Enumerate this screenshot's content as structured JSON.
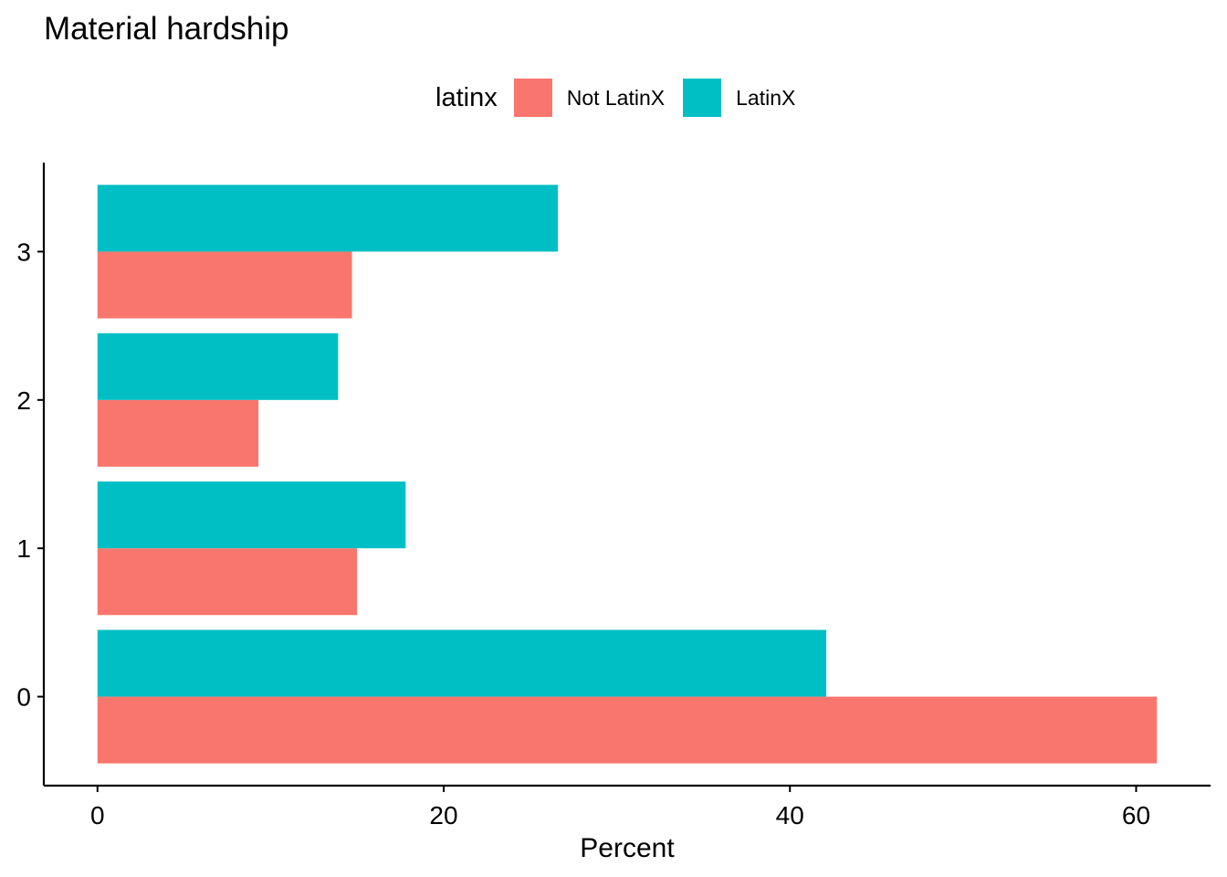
{
  "chart_data": {
    "type": "bar",
    "orientation": "horizontal",
    "title": "Material hardship",
    "xlabel": "Percent",
    "ylabel": "",
    "legend_title": "latinx",
    "legend_position": "top",
    "categories": [
      "0",
      "1",
      "2",
      "3"
    ],
    "series": [
      {
        "name": "Not LatinX",
        "color": "#F8766D",
        "values": [
          61.2,
          15.0,
          9.3,
          14.7
        ]
      },
      {
        "name": "LatinX",
        "color": "#00BFC4",
        "values": [
          42.1,
          17.8,
          13.9,
          26.6
        ]
      }
    ],
    "xlim": [
      -3.1,
      64.3
    ],
    "x_ticks": [
      "0",
      "20",
      "40",
      "60"
    ],
    "grid": false
  }
}
